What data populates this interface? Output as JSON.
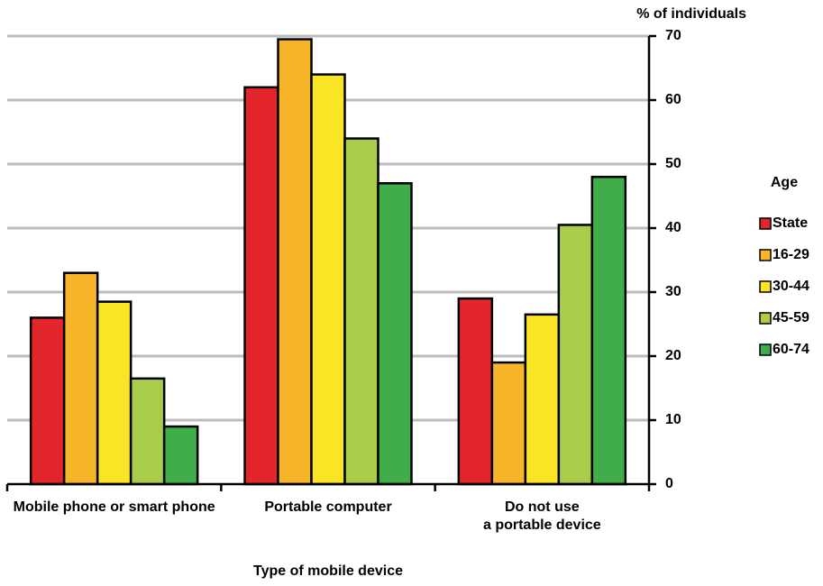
{
  "chart_data": {
    "type": "bar",
    "x_label": "Type of mobile device",
    "y_label": "% of individuals",
    "legend_title": "Age",
    "legend_position": "right",
    "categories": [
      "Mobile phone or smart phone",
      "Portable computer",
      "Do not use\na portable device"
    ],
    "series": [
      {
        "name": "State",
        "color": "#e3262b",
        "values": [
          26,
          62,
          29
        ]
      },
      {
        "name": "16-29",
        "color": "#f7b52a",
        "values": [
          33,
          69.5,
          19
        ]
      },
      {
        "name": "30-44",
        "color": "#f9e526",
        "values": [
          28.5,
          64,
          26.5
        ]
      },
      {
        "name": "45-59",
        "color": "#a9cd4a",
        "values": [
          16.5,
          54,
          40.5
        ]
      },
      {
        "name": "60-74",
        "color": "#3fae4a",
        "values": [
          9,
          47,
          48
        ]
      }
    ],
    "ylim": [
      0,
      70
    ],
    "yticks": [
      0,
      10,
      20,
      30,
      40,
      50,
      60,
      70
    ],
    "grid": true
  }
}
